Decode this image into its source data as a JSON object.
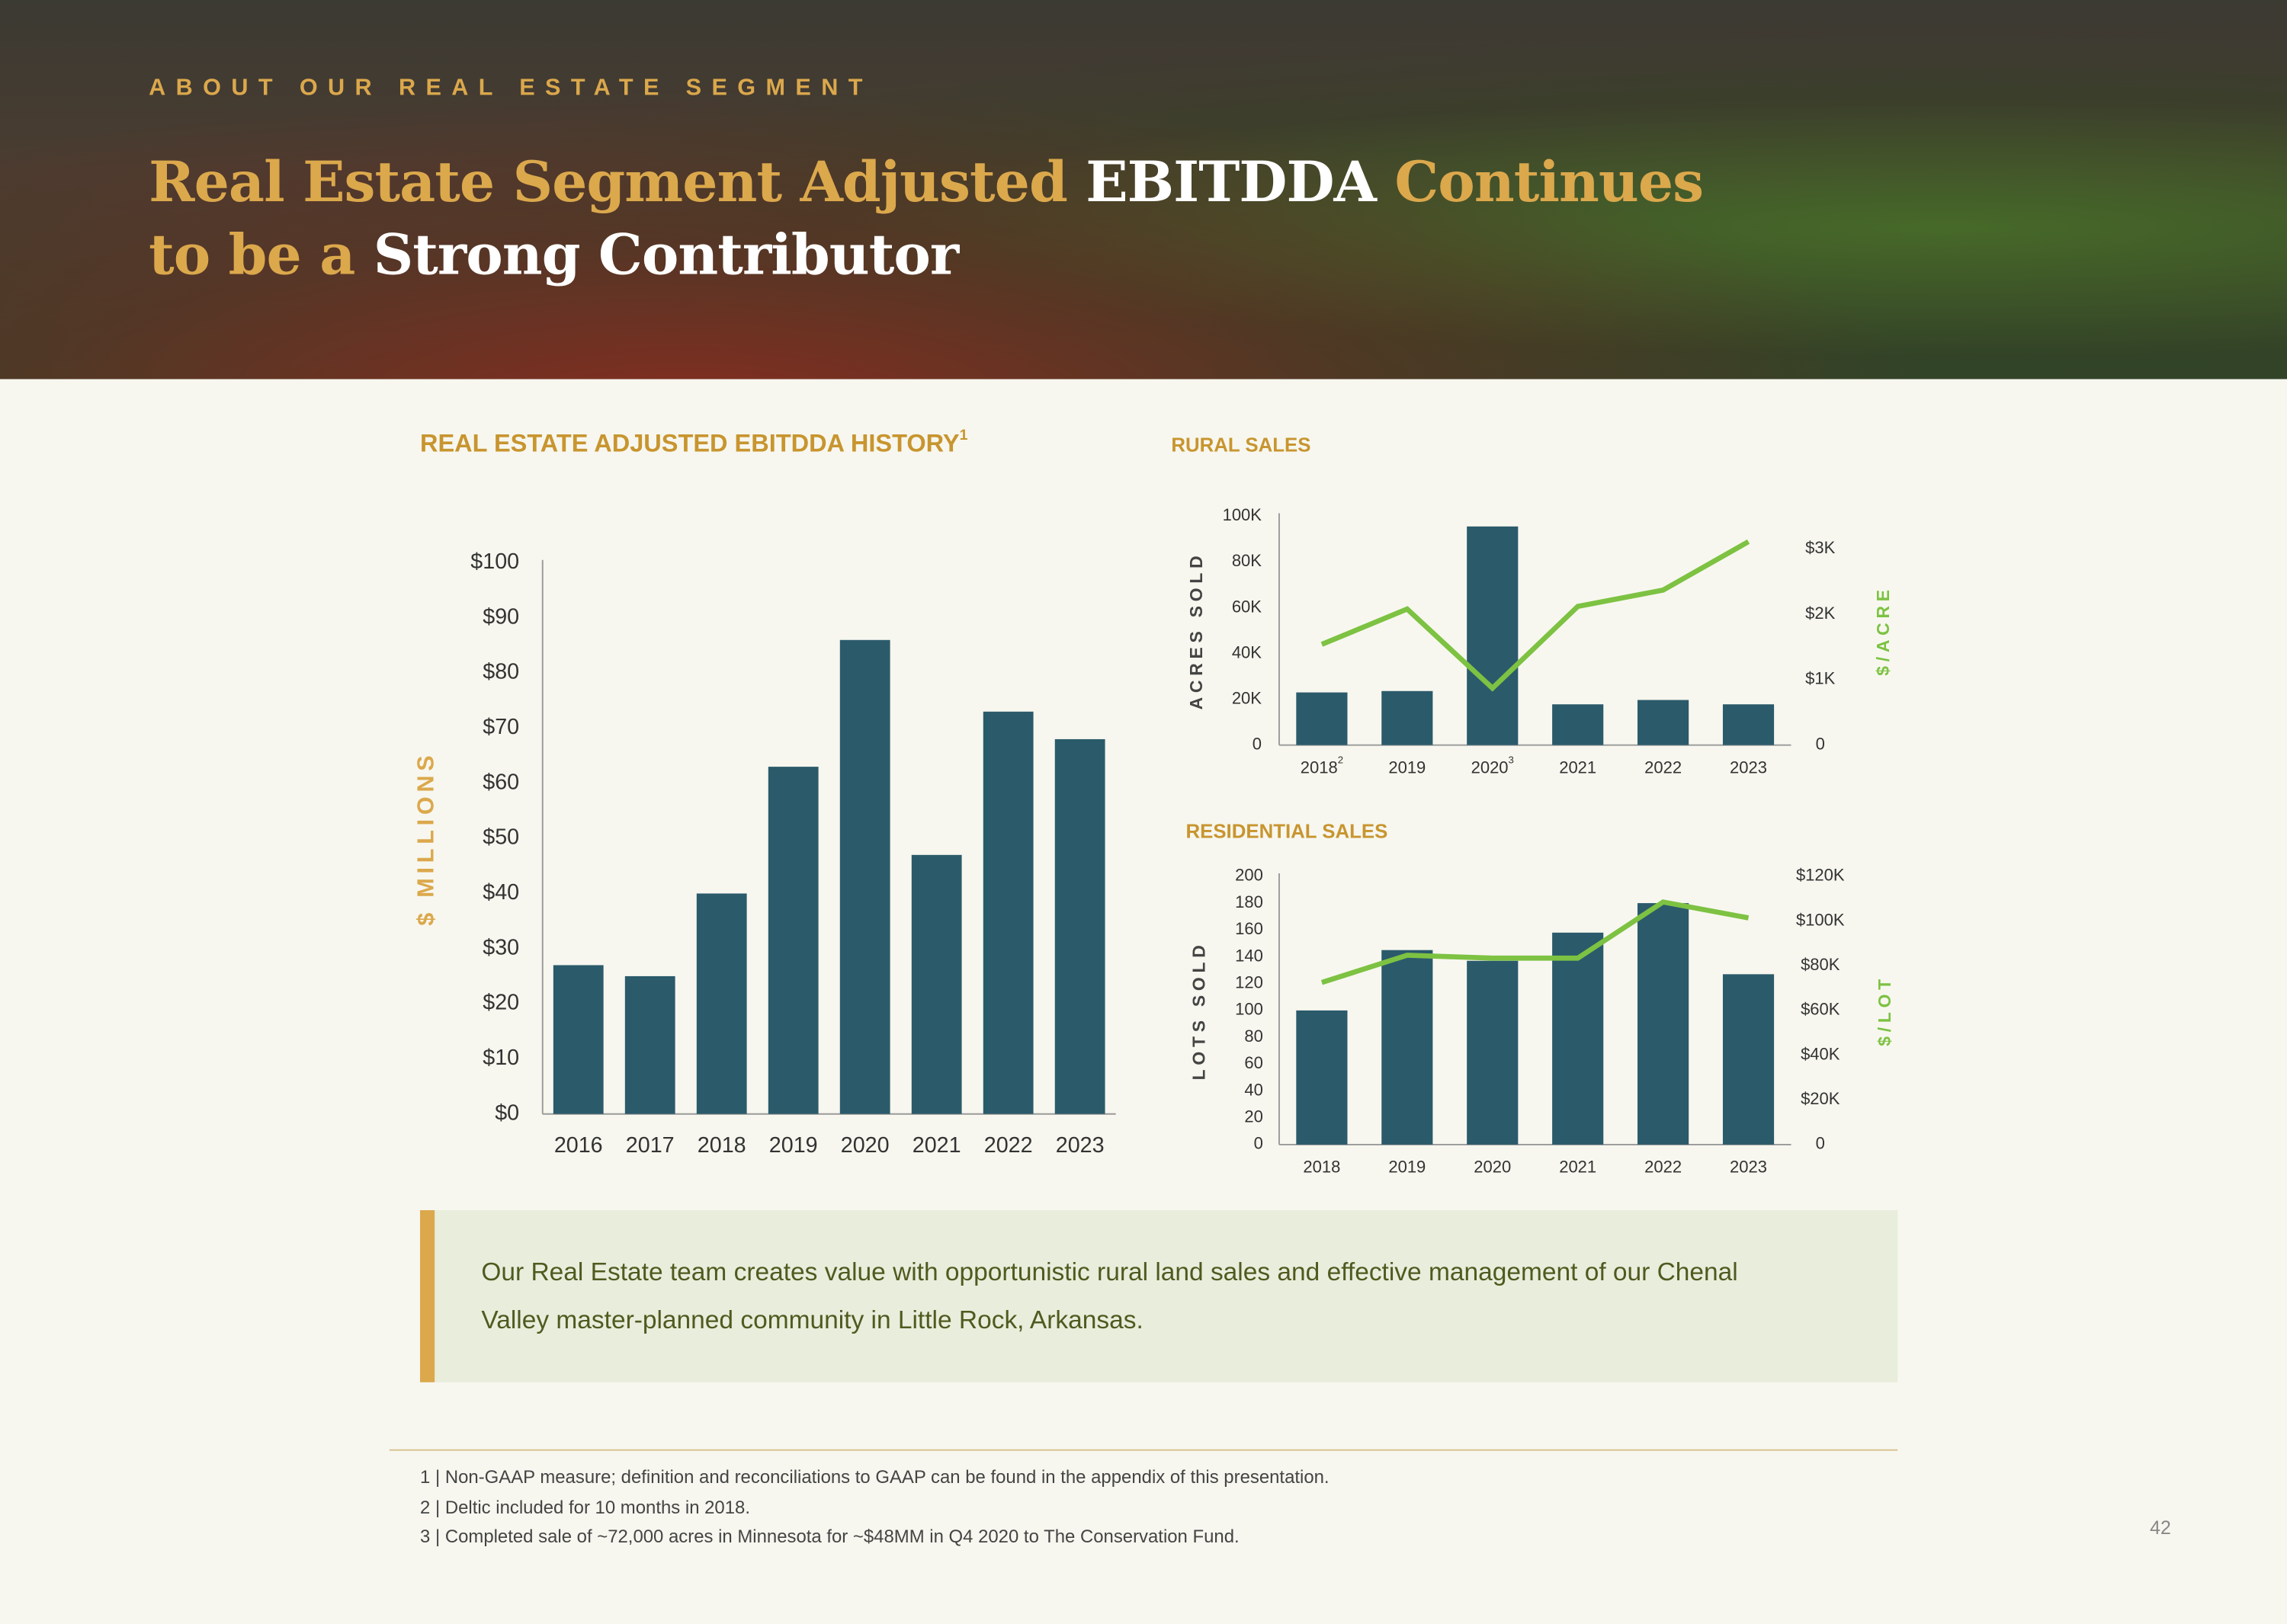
{
  "header": {
    "eyebrow": "ABOUT OUR REAL ESTATE SEGMENT",
    "title_parts": [
      {
        "text": "Real Estate Segment Adjusted",
        "color": "#dba84c"
      },
      {
        "text": "EBITDDA",
        "color": "#ffffff"
      },
      {
        "text": "Continues",
        "color": "#dba84c"
      },
      {
        "text": "to be a",
        "color": "#dba84c"
      },
      {
        "text": "Strong Contributor",
        "color": "#ffffff"
      }
    ]
  },
  "chart_data": [
    {
      "type": "bar",
      "title": "REAL ESTATE ADJUSTED EBITDDA HISTORY",
      "title_note": "1",
      "y_label": "$ MILLIONS",
      "categories": [
        "2016",
        "2017",
        "2018",
        "2019",
        "2020",
        "2021",
        "2022",
        "2023"
      ],
      "values": [
        27,
        25,
        40,
        63,
        86,
        47,
        73,
        68
      ],
      "color": "#2b5a6b",
      "ylim": [
        0,
        100
      ],
      "yticks": [
        {
          "value": 0,
          "label": "$0"
        },
        {
          "value": 10,
          "label": "$10"
        },
        {
          "value": 20,
          "label": "$20"
        },
        {
          "value": 30,
          "label": "$30"
        },
        {
          "value": 40,
          "label": "$40"
        },
        {
          "value": 50,
          "label": "$50"
        },
        {
          "value": 60,
          "label": "$60"
        },
        {
          "value": 70,
          "label": "$70"
        },
        {
          "value": 80,
          "label": "$80"
        },
        {
          "value": 90,
          "label": "$90"
        },
        {
          "value": 100,
          "label": "$100"
        }
      ],
      "grid": false
    },
    {
      "type": "combo",
      "title": "RURAL SALES",
      "y_label": "ACRES SOLD",
      "y2_label": "$/ACRE",
      "categories": [
        "2018",
        "2019",
        "2020",
        "2021",
        "2022",
        "2023"
      ],
      "category_notes": [
        "2",
        null,
        "3",
        null,
        null,
        null
      ],
      "series": [
        {
          "kind": "bar",
          "color": "#2b5a6b",
          "values": [
            23000,
            23600,
            95500,
            17800,
            19700,
            17800
          ]
        },
        {
          "kind": "line",
          "axis": "y2",
          "color": "#7dc242",
          "values": [
            1540,
            2080,
            870,
            2120,
            2370,
            3110
          ]
        }
      ],
      "ylim": [
        0,
        100000
      ],
      "yticks": [
        0,
        {
          "value": 20000,
          "label": "20K"
        },
        {
          "value": 40000,
          "label": "40K"
        },
        {
          "value": 60000,
          "label": "60K"
        },
        {
          "value": 80000,
          "label": "80K"
        },
        {
          "value": 100000,
          "label": "100K"
        }
      ],
      "y2lim": [
        0,
        3500
      ],
      "y2ticks": [
        0,
        {
          "value": 1000,
          "label": "$1K"
        },
        {
          "value": 2000,
          "label": "$2K"
        },
        {
          "value": 3000,
          "label": "$3K"
        }
      ],
      "grid": false
    },
    {
      "type": "combo",
      "title": "RESIDENTIAL SALES",
      "y_label": "LOTS SOLD",
      "y2_label": "$/LOT",
      "categories": [
        "2018",
        "2019",
        "2020",
        "2021",
        "2022",
        "2023"
      ],
      "series": [
        {
          "kind": "bar",
          "color": "#2b5a6b",
          "values": [
            100,
            145,
            137,
            158,
            180,
            127
          ]
        },
        {
          "kind": "line",
          "axis": "y2",
          "color": "#7dc242",
          "values": [
            72500,
            84700,
            83400,
            83400,
            108500,
            101400
          ]
        }
      ],
      "ylim": [
        0,
        200
      ],
      "yticks": [
        0,
        20,
        40,
        60,
        80,
        100,
        120,
        140,
        160,
        180,
        200
      ],
      "y2lim": [
        0,
        120000
      ],
      "y2ticks": [
        0,
        {
          "value": 20000,
          "label": "$20K"
        },
        {
          "value": 40000,
          "label": "$40K"
        },
        {
          "value": 60000,
          "label": "$60K"
        },
        {
          "value": 80000,
          "label": "$80K"
        },
        {
          "value": 100000,
          "label": "$100K"
        },
        {
          "value": 120000,
          "label": "$120K"
        }
      ],
      "grid": false
    }
  ],
  "callout": "Our Real Estate team creates value with opportunistic rural land sales and effective management of our Chenal Valley master-planned community in Little Rock, Arkansas.",
  "footnotes": [
    "1 | Non-GAAP measure; definition and reconciliations to GAAP can be found in the appendix of this presentation.",
    "2 | Deltic included for 10 months in 2018.",
    "3 | Completed sale of ~72,000 acres in Minnesota for ~$48MM in Q4 2020 to The Conservation Fund."
  ],
  "page_number": "42"
}
